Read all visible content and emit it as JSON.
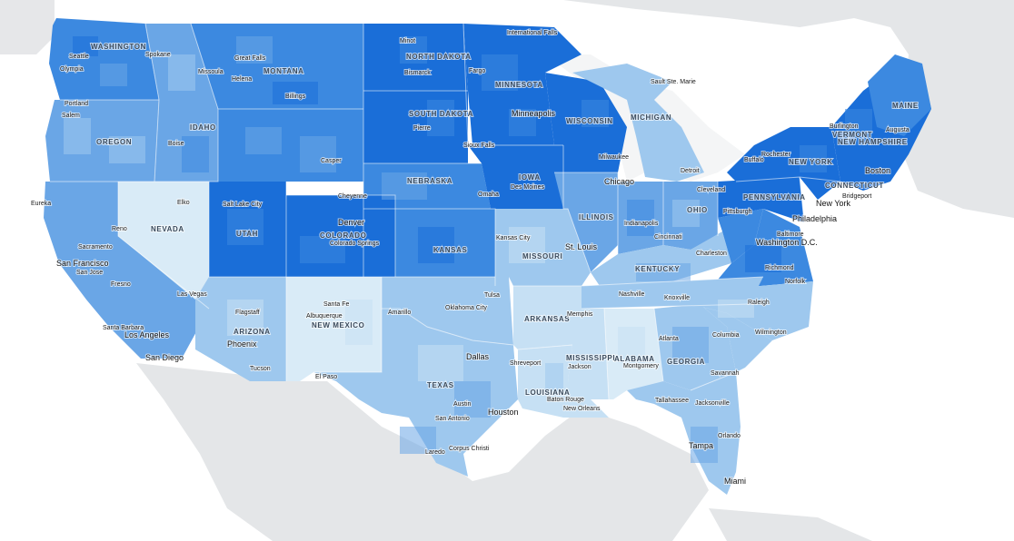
{
  "colors": {
    "background": "#ffffff",
    "land": "#e4e6e8",
    "water": "#f4f5f6",
    "dark_blue": "#1a6ed8",
    "medium_dark_blue": "#3c89e0",
    "medium_blue": "#6aa6e6",
    "light_blue": "#9ec8ee",
    "pale_blue": "#c6e0f4",
    "palest_blue": "#d9ebf7"
  },
  "states": [
    {
      "key": "washington",
      "label": "WASHINGTON"
    },
    {
      "key": "oregon",
      "label": "OREGON"
    },
    {
      "key": "idaho",
      "label": "IDAHO"
    },
    {
      "key": "montana",
      "label": "MONTANA"
    },
    {
      "key": "north_dakota",
      "label": "NORTH DAKOTA"
    },
    {
      "key": "south_dakota",
      "label": "SOUTH DAKOTA"
    },
    {
      "key": "minnesota",
      "label": "MINNESOTA"
    },
    {
      "key": "wisconsin",
      "label": "WISCONSIN"
    },
    {
      "key": "michigan",
      "label": "MICHIGAN"
    },
    {
      "key": "nevada",
      "label": "NEVADA"
    },
    {
      "key": "utah",
      "label": "UTAH"
    },
    {
      "key": "colorado",
      "label": "COLORADO"
    },
    {
      "key": "nebraska",
      "label": "NEBRASKA"
    },
    {
      "key": "iowa",
      "label": "IOWA"
    },
    {
      "key": "illinois",
      "label": "ILLINOIS"
    },
    {
      "key": "ohio",
      "label": "OHIO"
    },
    {
      "key": "kansas",
      "label": "KANSAS"
    },
    {
      "key": "missouri",
      "label": "MISSOURI"
    },
    {
      "key": "kentucky",
      "label": "KENTUCKY"
    },
    {
      "key": "arizona",
      "label": "ARIZONA"
    },
    {
      "key": "new_mexico",
      "label": "NEW MEXICO"
    },
    {
      "key": "arkansas",
      "label": "ARKANSAS"
    },
    {
      "key": "mississippi",
      "label": "MISSISSIPPI"
    },
    {
      "key": "alabama",
      "label": "ALABAMA"
    },
    {
      "key": "georgia",
      "label": "GEORGIA"
    },
    {
      "key": "texas",
      "label": "TEXAS"
    },
    {
      "key": "louisiana",
      "label": "LOUISIANA"
    },
    {
      "key": "new_york",
      "label": "NEW YORK"
    },
    {
      "key": "pennsylvania",
      "label": "PENNSYLVANIA"
    },
    {
      "key": "vermont",
      "label": "VERMONT"
    },
    {
      "key": "new_hampshire",
      "label": "NEW HAMPSHIRE"
    },
    {
      "key": "maine",
      "label": "MAINE"
    },
    {
      "key": "connecticut",
      "label": "CONNECTICUT"
    }
  ],
  "cities": [
    {
      "key": "seattle",
      "label": "Seattle"
    },
    {
      "key": "olympia",
      "label": "Olympia"
    },
    {
      "key": "spokane",
      "label": "Spokane"
    },
    {
      "key": "portland",
      "label": "Portland"
    },
    {
      "key": "salem",
      "label": "Salem"
    },
    {
      "key": "great_falls",
      "label": "Great Falls"
    },
    {
      "key": "missoula",
      "label": "Missoula"
    },
    {
      "key": "helena",
      "label": "Helena"
    },
    {
      "key": "billings",
      "label": "Billings"
    },
    {
      "key": "boise",
      "label": "Boise"
    },
    {
      "key": "casper",
      "label": "Casper"
    },
    {
      "key": "minot",
      "label": "Minot"
    },
    {
      "key": "bismarck",
      "label": "Bismarck"
    },
    {
      "key": "fargo",
      "label": "Fargo"
    },
    {
      "key": "pierre",
      "label": "Pierre"
    },
    {
      "key": "sioux_falls",
      "label": "Sioux Falls"
    },
    {
      "key": "international_falls",
      "label": "International Falls"
    },
    {
      "key": "minneapolis",
      "label": "Minneapolis"
    },
    {
      "key": "sault_ste_marie",
      "label": "Sault Ste. Marie"
    },
    {
      "key": "milwaukee",
      "label": "Milwaukee"
    },
    {
      "key": "detroit",
      "label": "Detroit"
    },
    {
      "key": "chicago",
      "label": "Chicago"
    },
    {
      "key": "des_moines",
      "label": "Des Moines"
    },
    {
      "key": "omaha",
      "label": "Omaha"
    },
    {
      "key": "cheyenne",
      "label": "Cheyenne"
    },
    {
      "key": "eureka",
      "label": "Eureka"
    },
    {
      "key": "reno",
      "label": "Reno"
    },
    {
      "key": "sacramento",
      "label": "Sacramento"
    },
    {
      "key": "san_francisco",
      "label": "San Francisco"
    },
    {
      "key": "san_jose",
      "label": "San Jose"
    },
    {
      "key": "fresno",
      "label": "Fresno"
    },
    {
      "key": "elko",
      "label": "Elko"
    },
    {
      "key": "salt_lake_city",
      "label": "Salt Lake City"
    },
    {
      "key": "denver",
      "label": "Denver"
    },
    {
      "key": "colorado_springs",
      "label": "Colorado Springs"
    },
    {
      "key": "kansas_city",
      "label": "Kansas City"
    },
    {
      "key": "st_louis",
      "label": "St. Louis"
    },
    {
      "key": "indianapolis",
      "label": "Indianapolis"
    },
    {
      "key": "cincinnati",
      "label": "Cincinnati"
    },
    {
      "key": "cleveland",
      "label": "Cleveland"
    },
    {
      "key": "pittsburgh",
      "label": "Pittsburgh"
    },
    {
      "key": "charleston",
      "label": "Charleston"
    },
    {
      "key": "buffalo",
      "label": "Buffalo"
    },
    {
      "key": "rochester",
      "label": "Rochester"
    },
    {
      "key": "burlington",
      "label": "Burlington"
    },
    {
      "key": "augusta",
      "label": "Augusta"
    },
    {
      "key": "boston",
      "label": "Boston"
    },
    {
      "key": "bridgeport",
      "label": "Bridgeport"
    },
    {
      "key": "new_york_city",
      "label": "New York"
    },
    {
      "key": "philadelphia",
      "label": "Philadelphia"
    },
    {
      "key": "baltimore",
      "label": "Baltimore"
    },
    {
      "key": "washington_dc",
      "label": "Washington D.C."
    },
    {
      "key": "richmond",
      "label": "Richmond"
    },
    {
      "key": "norfolk",
      "label": "Norfolk"
    },
    {
      "key": "las_vegas",
      "label": "Las Vegas"
    },
    {
      "key": "santa_barbara",
      "label": "Santa Barbara"
    },
    {
      "key": "los_angeles",
      "label": "Los Angeles"
    },
    {
      "key": "san_diego",
      "label": "San Diego"
    },
    {
      "key": "flagstaff",
      "label": "Flagstaff"
    },
    {
      "key": "phoenix",
      "label": "Phoenix"
    },
    {
      "key": "tucson",
      "label": "Tucson"
    },
    {
      "key": "santa_fe",
      "label": "Santa Fe"
    },
    {
      "key": "albuquerque",
      "label": "Albuquerque"
    },
    {
      "key": "el_paso",
      "label": "El Paso"
    },
    {
      "key": "amarillo",
      "label": "Amarillo"
    },
    {
      "key": "oklahoma_city",
      "label": "Oklahoma City"
    },
    {
      "key": "tulsa",
      "label": "Tulsa"
    },
    {
      "key": "dallas",
      "label": "Dallas"
    },
    {
      "key": "austin",
      "label": "Austin"
    },
    {
      "key": "san_antonio",
      "label": "San Antonio"
    },
    {
      "key": "houston",
      "label": "Houston"
    },
    {
      "key": "laredo",
      "label": "Laredo"
    },
    {
      "key": "corpus_christi",
      "label": "Corpus Christi"
    },
    {
      "key": "shreveport",
      "label": "Shreveport"
    },
    {
      "key": "memphis",
      "label": "Memphis"
    },
    {
      "key": "nashville",
      "label": "Nashville"
    },
    {
      "key": "knoxville",
      "label": "Knoxville"
    },
    {
      "key": "jackson",
      "label": "Jackson"
    },
    {
      "key": "montgomery",
      "label": "Montgomery"
    },
    {
      "key": "baton_rouge",
      "label": "Baton Rouge"
    },
    {
      "key": "new_orleans",
      "label": "New Orleans"
    },
    {
      "key": "atlanta",
      "label": "Atlanta"
    },
    {
      "key": "columbia",
      "label": "Columbia"
    },
    {
      "key": "raleigh",
      "label": "Raleigh"
    },
    {
      "key": "wilmington",
      "label": "Wilmington"
    },
    {
      "key": "savannah",
      "label": "Savannah"
    },
    {
      "key": "tallahassee",
      "label": "Tallahassee"
    },
    {
      "key": "jacksonville",
      "label": "Jacksonville"
    },
    {
      "key": "orlando",
      "label": "Orlando"
    },
    {
      "key": "tampa",
      "label": "Tampa"
    },
    {
      "key": "miami",
      "label": "Miami"
    }
  ]
}
